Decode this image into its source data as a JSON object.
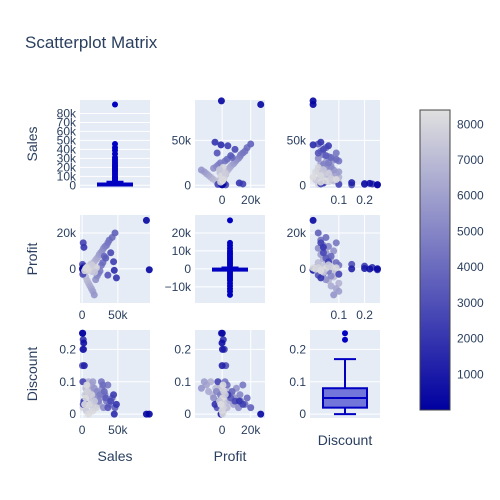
{
  "chart_data": {
    "type": "scatter",
    "title": "Scatterplot Matrix",
    "variables": [
      "Sales",
      "Profit",
      "Discount"
    ],
    "diagonal": "box",
    "colorbar": {
      "range": [
        0,
        8400
      ],
      "ticks": [
        1000,
        2000,
        3000,
        4000,
        5000,
        6000,
        7000,
        8000
      ],
      "colorscale": [
        "#0000a0",
        "#e0e0e0"
      ]
    },
    "ranges": {
      "Sales": [
        -3000,
        95000
      ],
      "Profit": [
        -19000,
        30000
      ],
      "Discount": [
        -0.012,
        0.26
      ]
    },
    "ticks": {
      "Sales": [
        {
          "v": 0,
          "t": "0"
        },
        {
          "v": 10000,
          "t": "10k"
        },
        {
          "v": 20000,
          "t": "20k"
        },
        {
          "v": 30000,
          "t": "30k"
        },
        {
          "v": 40000,
          "t": "40k"
        },
        {
          "v": 50000,
          "t": "50k"
        },
        {
          "v": 60000,
          "t": "60k"
        },
        {
          "v": 70000,
          "t": "70k"
        },
        {
          "v": 80000,
          "t": "80k"
        }
      ],
      "Profit": [
        {
          "v": -10000,
          "t": "−10k"
        },
        {
          "v": 0,
          "t": "0"
        },
        {
          "v": 10000,
          "t": "10k"
        },
        {
          "v": 20000,
          "t": "20k"
        }
      ],
      "Discount": [
        {
          "v": 0,
          "t": "0"
        },
        {
          "v": 0.1,
          "t": "0.1"
        },
        {
          "v": 0.2,
          "t": "0.2"
        }
      ]
    },
    "cell_ticks": {
      "offdiag_y": {
        "Sales": [
          {
            "v": 0,
            "t": "0"
          },
          {
            "v": 50000,
            "t": "50k"
          }
        ],
        "Profit": [
          {
            "v": 0,
            "t": "0"
          },
          {
            "v": 20000,
            "t": "20k"
          }
        ],
        "Discount": [
          {
            "v": 0,
            "t": "0"
          },
          {
            "v": 0.1,
            "t": "0.1"
          },
          {
            "v": 0.2,
            "t": "0.2"
          }
        ]
      },
      "x": {
        "Sales": [
          {
            "v": 0,
            "t": "0"
          },
          {
            "v": 50000,
            "t": "50k"
          }
        ],
        "Profit": [
          {
            "v": 0,
            "t": "0"
          },
          {
            "v": 20000,
            "t": "20k"
          }
        ],
        "Discount": [
          {
            "v": 0.1,
            "t": "0.1"
          },
          {
            "v": 0.2,
            "t": "0.2"
          }
        ]
      }
    },
    "box_stats": {
      "Sales": {
        "min": 0,
        "q1": 500,
        "median": 1000,
        "q3": 2000,
        "max": 4000,
        "outliers": [
          3500,
          5000,
          6000,
          7500,
          9000,
          10000,
          12000,
          14000,
          16000,
          17000,
          18500,
          20000,
          21500,
          23000,
          25000,
          27000,
          29000,
          31000,
          35000,
          39000,
          42000,
          46000,
          90000
        ]
      },
      "Profit": {
        "min": -800,
        "q1": -150,
        "median": 0,
        "q3": 150,
        "max": 800,
        "outliers": [
          -14500,
          -12500,
          -11000,
          -9500,
          -8000,
          -6500,
          -5500,
          -4500,
          -3500,
          -2500,
          -1500,
          2000,
          3000,
          4000,
          5000,
          6000,
          7000,
          8000,
          9000,
          10000,
          11500,
          13000,
          14500,
          27000
        ]
      },
      "Discount": {
        "min": 0,
        "q1": 0.02,
        "median": 0.05,
        "q3": 0.08,
        "max": 0.17,
        "outliers": [
          0.23,
          0.25
        ]
      }
    },
    "points": [
      {
        "sales": 1200,
        "profit": 150,
        "discount": 0.02,
        "c": 8000
      },
      {
        "sales": 2500,
        "profit": 400,
        "discount": 0.04,
        "c": 7900
      },
      {
        "sales": 4000,
        "profit": -300,
        "discount": 0.06,
        "c": 7800
      },
      {
        "sales": 6000,
        "profit": 900,
        "discount": 0.01,
        "c": 7600
      },
      {
        "sales": 8000,
        "profit": -800,
        "discount": 0.08,
        "c": 7700
      },
      {
        "sales": 10000,
        "profit": 1500,
        "discount": 0.03,
        "c": 7500
      },
      {
        "sales": 12000,
        "profit": 2500,
        "discount": 0.05,
        "c": 7300
      },
      {
        "sales": 14000,
        "profit": -1500,
        "discount": 0.09,
        "c": 7200
      },
      {
        "sales": 16000,
        "profit": 3500,
        "discount": 0.02,
        "c": 7000
      },
      {
        "sales": 18000,
        "profit": 4500,
        "discount": 0.07,
        "c": 6800
      },
      {
        "sales": 20000,
        "profit": 5500,
        "discount": 0.04,
        "c": 6500
      },
      {
        "sales": 22000,
        "profit": 6500,
        "discount": 0.06,
        "c": 6300
      },
      {
        "sales": 24000,
        "profit": 8000,
        "discount": 0.03,
        "c": 6000
      },
      {
        "sales": 26000,
        "profit": 9000,
        "discount": 0.05,
        "c": 5800
      },
      {
        "sales": 28000,
        "profit": 10000,
        "discount": 0.08,
        "c": 5500
      },
      {
        "sales": 30000,
        "profit": 11500,
        "discount": 0.02,
        "c": 5300
      },
      {
        "sales": 32000,
        "profit": 12500,
        "discount": 0.06,
        "c": 5000
      },
      {
        "sales": 34000,
        "profit": 13000,
        "discount": 0.04,
        "c": 4800
      },
      {
        "sales": 36000,
        "profit": 14500,
        "discount": 0.09,
        "c": 4500
      },
      {
        "sales": 38000,
        "profit": 16000,
        "discount": 0.03,
        "c": 4300
      },
      {
        "sales": 42000,
        "profit": 17500,
        "discount": 0.05,
        "c": 4000
      },
      {
        "sales": 46000,
        "profit": 20000,
        "discount": 0.02,
        "c": 3600
      },
      {
        "sales": 3000,
        "profit": -2500,
        "discount": 0.1,
        "c": 7400
      },
      {
        "sales": 5000,
        "profit": -4500,
        "discount": 0.08,
        "c": 7100
      },
      {
        "sales": 7000,
        "profit": -6500,
        "discount": 0.06,
        "c": 6900
      },
      {
        "sales": 9000,
        "profit": -8000,
        "discount": 0.1,
        "c": 6700
      },
      {
        "sales": 11000,
        "profit": -9500,
        "discount": 0.07,
        "c": 6400
      },
      {
        "sales": 13000,
        "profit": -11000,
        "discount": 0.09,
        "c": 6200
      },
      {
        "sales": 15000,
        "profit": -12500,
        "discount": 0.1,
        "c": 5900
      },
      {
        "sales": 17000,
        "profit": -14500,
        "discount": 0.08,
        "c": 5600
      },
      {
        "sales": 19000,
        "profit": -6000,
        "discount": 0.05,
        "c": 5400
      },
      {
        "sales": 21000,
        "profit": -4000,
        "discount": 0.07,
        "c": 5100
      },
      {
        "sales": 23000,
        "profit": -2500,
        "discount": 0.04,
        "c": 4900
      },
      {
        "sales": 25000,
        "profit": -1200,
        "discount": 0.06,
        "c": 4600
      },
      {
        "sales": 27000,
        "profit": 2000,
        "discount": 0.1,
        "c": 4400
      },
      {
        "sales": 29000,
        "profit": 3500,
        "discount": 0.09,
        "c": 4100
      },
      {
        "sales": 31000,
        "profit": 7000,
        "discount": 0.07,
        "c": 3900
      },
      {
        "sales": 33000,
        "profit": 6000,
        "discount": 0.05,
        "c": 3400
      },
      {
        "sales": 500,
        "profit": 2500,
        "discount": 0.15,
        "c": 3000
      },
      {
        "sales": 1000,
        "profit": -3000,
        "discount": 0.1,
        "c": 2600
      },
      {
        "sales": 2000,
        "profit": 1500,
        "discount": 0.2,
        "c": 2200
      },
      {
        "sales": 1500,
        "profit": 800,
        "discount": 0.23,
        "c": 1800
      },
      {
        "sales": 800,
        "profit": -500,
        "discount": 0.25,
        "c": 1400
      },
      {
        "sales": 36000,
        "profit": -3500,
        "discount": 0.02,
        "c": 3100
      },
      {
        "sales": 40000,
        "profit": 9000,
        "discount": 0.04,
        "c": 2700
      },
      {
        "sales": 44000,
        "profit": 4000,
        "discount": 0.06,
        "c": 2300
      },
      {
        "sales": 48000,
        "profit": -5000,
        "discount": 0.03,
        "c": 1900
      },
      {
        "sales": 90000,
        "profit": 27000,
        "discount": 0.0,
        "c": 200
      },
      {
        "sales": 94000,
        "profit": -500,
        "discount": 0.0,
        "c": 100
      },
      {
        "sales": 1500,
        "profit": 14500,
        "discount": 0.03,
        "c": 2500
      },
      {
        "sales": 2500,
        "profit": 12000,
        "discount": 0.04,
        "c": 2000
      },
      {
        "sales": 45000,
        "profit": -800,
        "discount": 0.0,
        "c": 1600
      },
      {
        "sales": 3000,
        "profit": 0,
        "discount": 0.15,
        "c": 1200
      },
      {
        "sales": 1200,
        "profit": 200,
        "discount": 0.2,
        "c": 900
      },
      {
        "sales": 2200,
        "profit": -100,
        "discount": 0.22,
        "c": 500
      },
      {
        "sales": 500,
        "profit": 100,
        "discount": 0.25,
        "c": 300
      },
      {
        "sales": 9000,
        "profit": 500,
        "discount": 0.0,
        "c": 8200
      },
      {
        "sales": 15000,
        "profit": -200,
        "discount": 0.01,
        "c": 8100
      },
      {
        "sales": 20000,
        "profit": 700,
        "discount": 0.02,
        "c": 7950
      },
      {
        "sales": 5000,
        "profit": 300,
        "discount": 0.05,
        "c": 8300
      },
      {
        "sales": 11000,
        "profit": -600,
        "discount": 0.03,
        "c": 8050
      },
      {
        "sales": 7500,
        "profit": 1200,
        "discount": 0.07,
        "c": 7850
      },
      {
        "sales": 13500,
        "profit": 2200,
        "discount": 0.06,
        "c": 7650
      },
      {
        "sales": 17500,
        "profit": -1800,
        "discount": 0.04,
        "c": 7450
      },
      {
        "sales": 3500,
        "profit": -1000,
        "discount": 0.03,
        "c": 8250
      },
      {
        "sales": 6500,
        "profit": 600,
        "discount": 0.09,
        "c": 8150
      }
    ]
  }
}
